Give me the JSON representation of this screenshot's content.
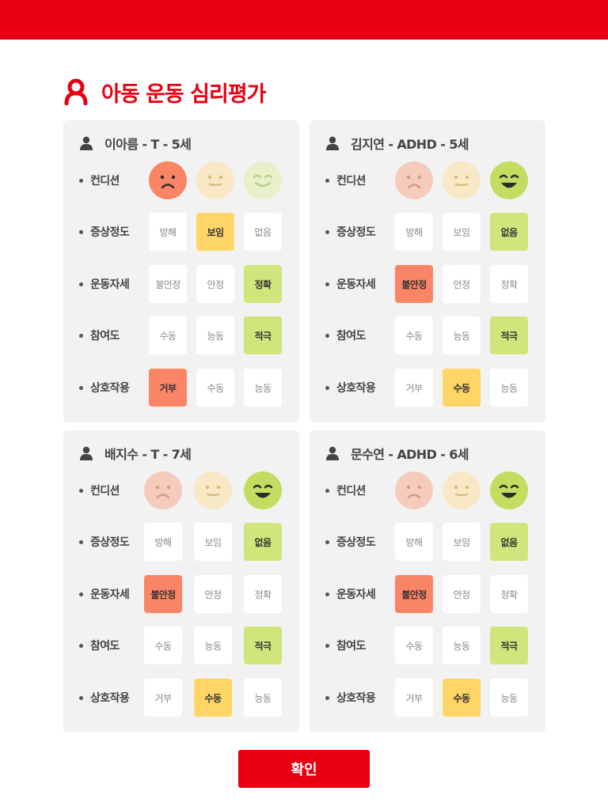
{
  "header": {
    "title": "아동 운동 심리평가"
  },
  "colors": {
    "brand_red": "#e60012",
    "negative": "#fa8466",
    "neutral": "#ffd566",
    "positive": "#d0e67c"
  },
  "confirm_label": "확인",
  "cards": [
    {
      "name": "이아름 - T - 5세",
      "rows": [
        {
          "label": "컨디션",
          "kind": "faces",
          "selected": 0
        },
        {
          "label": "증상정도",
          "options": [
            "방해",
            "보임",
            "없음"
          ],
          "selected": 1
        },
        {
          "label": "운동자세",
          "options": [
            "불안정",
            "안정",
            "정확"
          ],
          "selected": 2
        },
        {
          "label": "참여도",
          "options": [
            "수동",
            "능동",
            "적극"
          ],
          "selected": 2
        },
        {
          "label": "상호작용",
          "options": [
            "거부",
            "수동",
            "능동"
          ],
          "selected": 0
        }
      ]
    },
    {
      "name": "김지연 - ADHD - 5세",
      "rows": [
        {
          "label": "컨디션",
          "kind": "faces",
          "selected": 2
        },
        {
          "label": "증상정도",
          "options": [
            "방해",
            "보임",
            "없음"
          ],
          "selected": 2
        },
        {
          "label": "운동자세",
          "options": [
            "불안정",
            "안정",
            "정확"
          ],
          "selected": 0
        },
        {
          "label": "참여도",
          "options": [
            "수동",
            "능동",
            "적극"
          ],
          "selected": 2
        },
        {
          "label": "상호작용",
          "options": [
            "거부",
            "수동",
            "능동"
          ],
          "selected": 1
        }
      ]
    },
    {
      "name": "배지수 - T - 7세",
      "rows": [
        {
          "label": "컨디션",
          "kind": "faces",
          "selected": 2
        },
        {
          "label": "증상정도",
          "options": [
            "방해",
            "보임",
            "없음"
          ],
          "selected": 2
        },
        {
          "label": "운동자세",
          "options": [
            "불안정",
            "안정",
            "정확"
          ],
          "selected": 0
        },
        {
          "label": "참여도",
          "options": [
            "수동",
            "능동",
            "적극"
          ],
          "selected": 2
        },
        {
          "label": "상호작용",
          "options": [
            "거부",
            "수동",
            "능동"
          ],
          "selected": 1
        }
      ]
    },
    {
      "name": "문수연 - ADHD - 6세",
      "rows": [
        {
          "label": "컨디션",
          "kind": "faces",
          "selected": 2
        },
        {
          "label": "증상정도",
          "options": [
            "방해",
            "보임",
            "없음"
          ],
          "selected": 2
        },
        {
          "label": "운동자세",
          "options": [
            "불안정",
            "안정",
            "정확"
          ],
          "selected": 0
        },
        {
          "label": "참여도",
          "options": [
            "수동",
            "능동",
            "적극"
          ],
          "selected": 2
        },
        {
          "label": "상호작용",
          "options": [
            "거부",
            "수동",
            "능동"
          ],
          "selected": 1
        }
      ]
    }
  ]
}
